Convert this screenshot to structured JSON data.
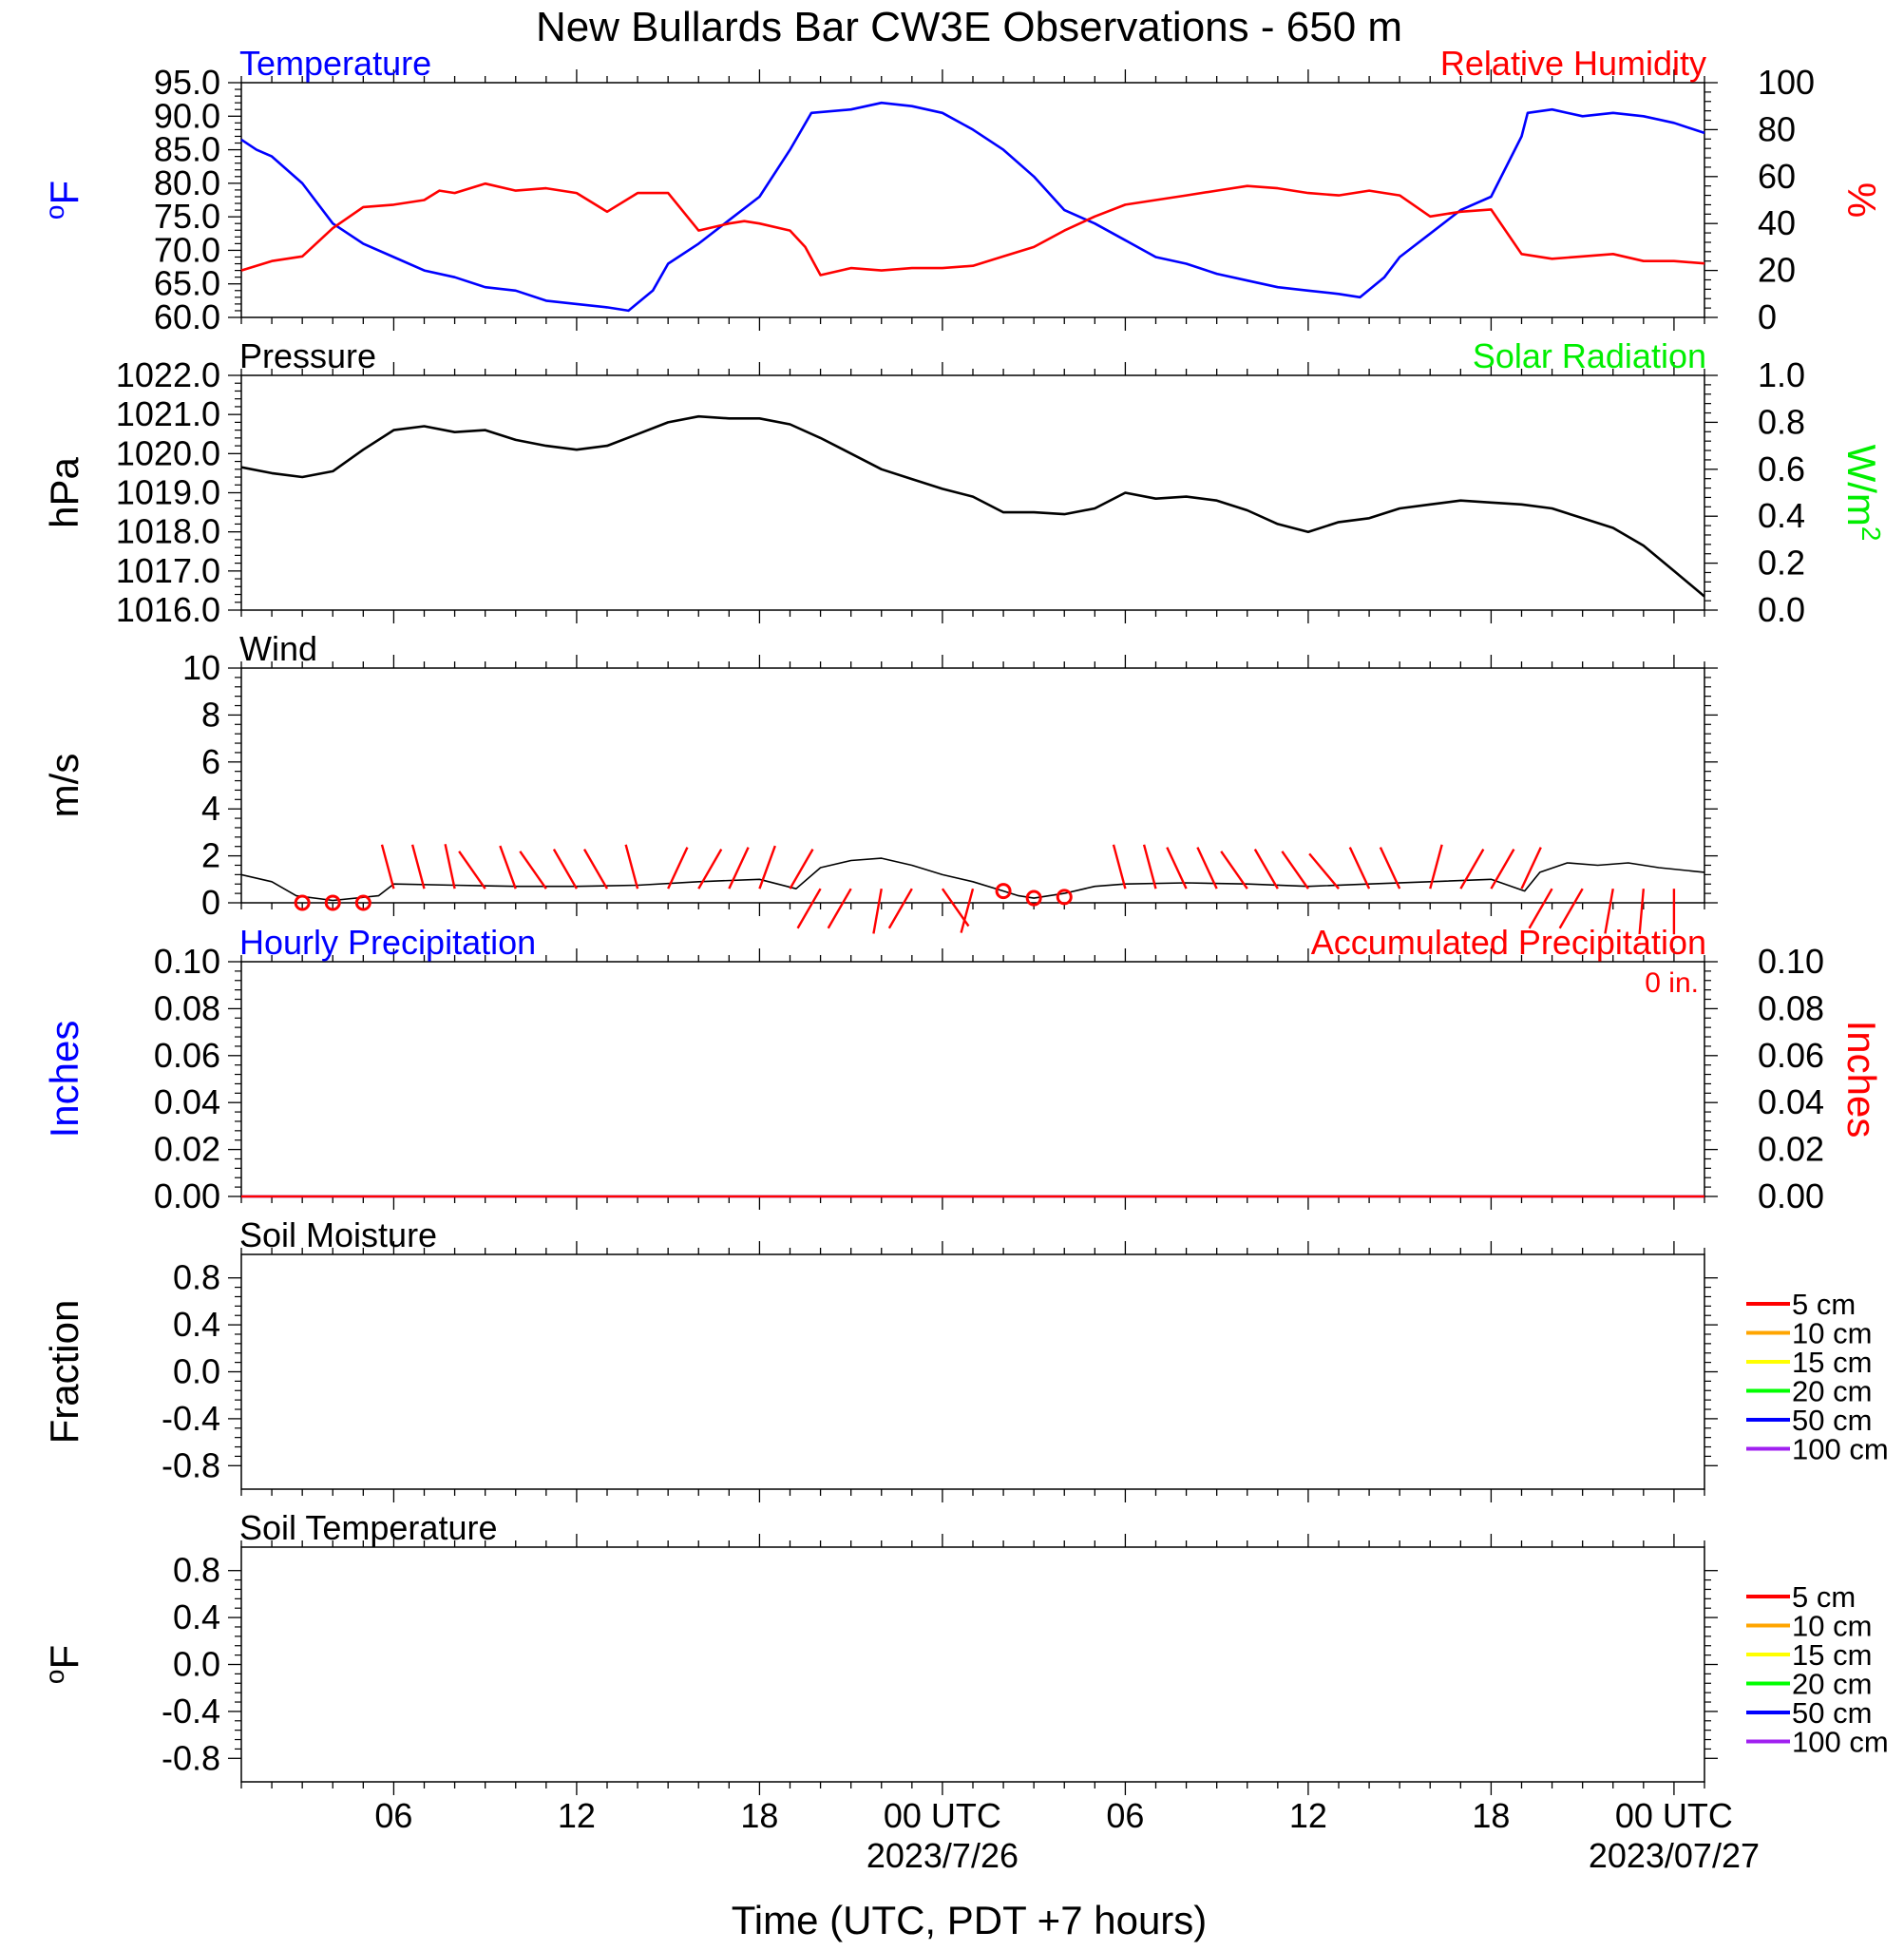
{
  "title": "New Bullards Bar CW3E Observations - 650 m",
  "xaxis": {
    "title": "Time (UTC, PDT +7 hours)",
    "range_hours": [
      1,
      49
    ],
    "ticks": [
      {
        "h": 6,
        "label": "06",
        "sub": ""
      },
      {
        "h": 12,
        "label": "12",
        "sub": ""
      },
      {
        "h": 18,
        "label": "18",
        "sub": ""
      },
      {
        "h": 24,
        "label": "00 UTC",
        "sub": "2023/7/26"
      },
      {
        "h": 30,
        "label": "06",
        "sub": ""
      },
      {
        "h": 36,
        "label": "12",
        "sub": ""
      },
      {
        "h": 42,
        "label": "18",
        "sub": ""
      },
      {
        "h": 48,
        "label": "00 UTC",
        "sub": "2023/07/27"
      }
    ]
  },
  "colors": {
    "temperature": "#0000ff",
    "humidity": "#ff0000",
    "pressure": "#000000",
    "solar": "#00ee00",
    "wind": "#000000",
    "barbs": "#ff0000",
    "soil_5": "#ff0000",
    "soil_10": "#ffa500",
    "soil_15": "#ffff00",
    "soil_20": "#00ff00",
    "soil_50": "#0000ff",
    "soil_100": "#a020f0"
  },
  "chart_data": [
    {
      "type": "line",
      "panel": "temperature-humidity",
      "left_title": "Temperature",
      "right_title": "Relative Humidity",
      "left_ylabel": "oF",
      "right_ylabel": "%",
      "ylim_left": [
        60,
        95
      ],
      "yticks_left": [
        "60.0",
        "65.0",
        "70.0",
        "75.0",
        "80.0",
        "85.0",
        "90.0",
        "95.0"
      ],
      "ylim_right": [
        0,
        100
      ],
      "yticks_right": [
        "0",
        "20",
        "40",
        "60",
        "80",
        "100"
      ],
      "series": [
        {
          "name": "Temperature",
          "axis": "left",
          "x": [
            1,
            1.5,
            2,
            3,
            4,
            5,
            6,
            7,
            8,
            9,
            10,
            11,
            12,
            13,
            13.7,
            14.5,
            15,
            16,
            17,
            18,
            19,
            19.7,
            21,
            22,
            23,
            24,
            25,
            26,
            27,
            28,
            29,
            30,
            31,
            32,
            33,
            34,
            35,
            36,
            37,
            37.7,
            38.5,
            39,
            40,
            41,
            42,
            43,
            43.2,
            44,
            45,
            46,
            47,
            48,
            49
          ],
          "y": [
            86.5,
            85,
            84,
            80,
            74,
            71,
            69,
            67,
            66,
            64.5,
            64,
            62.5,
            62,
            61.5,
            61,
            64,
            68,
            71,
            74.5,
            78,
            85,
            90.5,
            91,
            92,
            91.5,
            90.5,
            88,
            85,
            81,
            76,
            74,
            71.5,
            69,
            68,
            66.5,
            65.5,
            64.5,
            64,
            63.5,
            63,
            66,
            69,
            72.5,
            76,
            78,
            87,
            90.5,
            91,
            90,
            90.5,
            90,
            89,
            87.5
          ]
        },
        {
          "name": "Relative Humidity",
          "axis": "right",
          "x": [
            1,
            2,
            3,
            4,
            5,
            6,
            7,
            7.5,
            8,
            9,
            10,
            11,
            12,
            13,
            14,
            15,
            16,
            17,
            17.5,
            18,
            19,
            19.5,
            20,
            21,
            22,
            23,
            24,
            25,
            26,
            27,
            28,
            29,
            30,
            31,
            32,
            33,
            34,
            35,
            36,
            37,
            38,
            39,
            40,
            41,
            42,
            43,
            44,
            45,
            46,
            47,
            48,
            49
          ],
          "y": [
            20,
            24,
            26,
            38,
            47,
            48,
            50,
            54,
            53,
            57,
            54,
            55,
            53,
            45,
            53,
            53,
            37,
            40,
            41,
            40,
            37,
            30,
            18,
            21,
            20,
            21,
            21,
            22,
            26,
            30,
            37,
            43,
            48,
            50,
            52,
            54,
            56,
            55,
            53,
            52,
            54,
            52,
            43,
            45,
            46,
            27,
            25,
            26,
            27,
            24,
            24,
            23
          ]
        }
      ]
    },
    {
      "type": "line",
      "panel": "pressure-solar",
      "left_title": "Pressure",
      "right_title": "Solar Radiation",
      "left_ylabel": "hPa",
      "right_ylabel": "W/m2",
      "ylim_left": [
        1016,
        1022
      ],
      "yticks_left": [
        "1016.0",
        "1017.0",
        "1018.0",
        "1019.0",
        "1020.0",
        "1021.0",
        "1022.0"
      ],
      "ylim_right": [
        0,
        1
      ],
      "yticks_right": [
        "0.0",
        "0.2",
        "0.4",
        "0.6",
        "0.8",
        "1.0"
      ],
      "series": [
        {
          "name": "Pressure",
          "axis": "left",
          "x": [
            1,
            2,
            3,
            4,
            5,
            6,
            7,
            8,
            9,
            10,
            11,
            12,
            13,
            14,
            15,
            16,
            17,
            18,
            19,
            20,
            21,
            22,
            23,
            24,
            25,
            26,
            27,
            28,
            29,
            30,
            31,
            32,
            33,
            34,
            35,
            36,
            37,
            38,
            39,
            40,
            41,
            42,
            43,
            44,
            45,
            46,
            47,
            48,
            49
          ],
          "y": [
            1019.65,
            1019.5,
            1019.4,
            1019.55,
            1020.1,
            1020.6,
            1020.7,
            1020.55,
            1020.6,
            1020.35,
            1020.2,
            1020.1,
            1020.2,
            1020.5,
            1020.8,
            1020.95,
            1020.9,
            1020.9,
            1020.75,
            1020.4,
            1020.0,
            1019.6,
            1019.35,
            1019.1,
            1018.9,
            1018.5,
            1018.5,
            1018.45,
            1018.6,
            1019.0,
            1018.85,
            1018.9,
            1018.8,
            1018.55,
            1018.2,
            1018.0,
            1018.25,
            1018.35,
            1018.6,
            1018.7,
            1018.8,
            1018.75,
            1018.7,
            1018.6,
            1018.35,
            1018.1,
            1017.65,
            1017.0,
            1016.35
          ]
        }
      ]
    },
    {
      "type": "line",
      "panel": "wind",
      "left_title": "Wind",
      "left_ylabel": "m/s",
      "ylim_left": [
        0,
        10
      ],
      "yticks_left": [
        "0",
        "2",
        "4",
        "6",
        "8",
        "10"
      ],
      "series": [
        {
          "name": "Wind",
          "axis": "left",
          "x": [
            1,
            2,
            2.8,
            4,
            5.5,
            6,
            8,
            10,
            12,
            14,
            16,
            18,
            19.2,
            20,
            21,
            22,
            23,
            24,
            25,
            26,
            26.5,
            27,
            28,
            29,
            30,
            32,
            34,
            36,
            38,
            40,
            42,
            43.1,
            43.6,
            44.5,
            45.5,
            46.5,
            47.5,
            49
          ],
          "y": [
            1.2,
            0.9,
            0.3,
            0.1,
            0.3,
            0.8,
            0.75,
            0.7,
            0.7,
            0.75,
            0.9,
            1.0,
            0.6,
            1.5,
            1.8,
            1.9,
            1.6,
            1.2,
            0.9,
            0.5,
            0.3,
            0.2,
            0.4,
            0.7,
            0.8,
            0.85,
            0.8,
            0.7,
            0.8,
            0.9,
            1.0,
            0.5,
            1.3,
            1.7,
            1.6,
            1.7,
            1.5,
            1.3
          ]
        }
      ],
      "calm_markers": {
        "x": [
          3,
          4,
          5,
          26,
          27,
          28
        ],
        "y": [
          0,
          0,
          0,
          0.5,
          0.2,
          0.25
        ]
      },
      "barbs": {
        "x": [
          6,
          7,
          8,
          9,
          10,
          11,
          12,
          13,
          14,
          15,
          16,
          17,
          18,
          19,
          20,
          21,
          22,
          23,
          24,
          25,
          30,
          31,
          32,
          33,
          34,
          35,
          36,
          37,
          38,
          39,
          40,
          41,
          42,
          43,
          44,
          45,
          46,
          47,
          48
        ],
        "direction_deg": [
          -15,
          -15,
          -12,
          -35,
          -20,
          -35,
          -30,
          -30,
          -15,
          25,
          30,
          25,
          20,
          30,
          -150,
          -150,
          -170,
          -150,
          145,
          -165,
          -15,
          -15,
          -25,
          -25,
          -35,
          -30,
          -35,
          -40,
          -25,
          -25,
          15,
          30,
          30,
          25,
          -150,
          -150,
          -170,
          -175,
          -180
        ]
      }
    },
    {
      "type": "line",
      "panel": "precipitation",
      "left_title": "Hourly Precipitation",
      "right_title": "Accumulated Precipitation",
      "left_ylabel": "Inches",
      "right_ylabel": "Inches",
      "annotation": "0 in.",
      "ylim_left": [
        0,
        0.1
      ],
      "yticks_left": [
        "0.00",
        "0.02",
        "0.04",
        "0.06",
        "0.08",
        "0.10"
      ],
      "ylim_right": [
        0,
        0.1
      ],
      "yticks_right": [
        "0.00",
        "0.02",
        "0.04",
        "0.06",
        "0.08",
        "0.10"
      ],
      "series": [
        {
          "name": "Hourly Precipitation",
          "axis": "left",
          "x": [
            1,
            49
          ],
          "y": [
            0,
            0
          ]
        },
        {
          "name": "Accumulated Precipitation",
          "axis": "right",
          "x": [
            1,
            49
          ],
          "y": [
            0,
            0
          ]
        }
      ]
    },
    {
      "type": "line",
      "panel": "soil-moisture",
      "left_title": "Soil Moisture",
      "left_ylabel": "Fraction",
      "ylim_left": [
        -1,
        1
      ],
      "yticks_left": [
        "-0.8",
        "-0.4",
        "0.0",
        "0.4",
        "0.8"
      ],
      "legend": [
        "5 cm",
        "10 cm",
        "15 cm",
        "20 cm",
        "50 cm",
        "100 cm"
      ],
      "series": []
    },
    {
      "type": "line",
      "panel": "soil-temperature",
      "left_title": "Soil Temperature",
      "left_ylabel": "oF",
      "ylim_left": [
        -1,
        1
      ],
      "yticks_left": [
        "-0.8",
        "-0.4",
        "0.0",
        "0.4",
        "0.8"
      ],
      "legend": [
        "5 cm",
        "10 cm",
        "15 cm",
        "20 cm",
        "50 cm",
        "100 cm"
      ],
      "series": []
    }
  ]
}
